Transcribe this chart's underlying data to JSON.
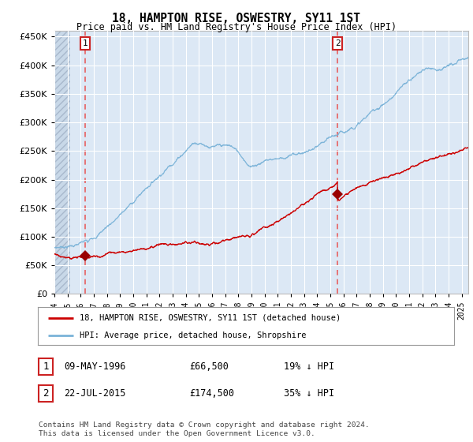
{
  "title": "18, HAMPTON RISE, OSWESTRY, SY11 1ST",
  "subtitle": "Price paid vs. HM Land Registry's House Price Index (HPI)",
  "ylim": [
    0,
    460000
  ],
  "yticks": [
    0,
    50000,
    100000,
    150000,
    200000,
    250000,
    300000,
    350000,
    400000,
    450000
  ],
  "sale1_date": 1996.36,
  "sale1_price": 66500,
  "sale2_date": 2015.55,
  "sale2_price": 174500,
  "hpi_line_color": "#7ab3d8",
  "price_line_color": "#cc0000",
  "marker_color": "#990000",
  "dashed_line_color": "#e86060",
  "bg_main": "#dce8f5",
  "legend_label1": "18, HAMPTON RISE, OSWESTRY, SY11 1ST (detached house)",
  "legend_label2": "HPI: Average price, detached house, Shropshire",
  "table_row1": [
    "1",
    "09-MAY-1996",
    "£66,500",
    "19% ↓ HPI"
  ],
  "table_row2": [
    "2",
    "22-JUL-2015",
    "£174,500",
    "35% ↓ HPI"
  ],
  "footer": "Contains HM Land Registry data © Crown copyright and database right 2024.\nThis data is licensed under the Open Government Licence v3.0.",
  "xmin": 1994,
  "xmax": 2025.5
}
